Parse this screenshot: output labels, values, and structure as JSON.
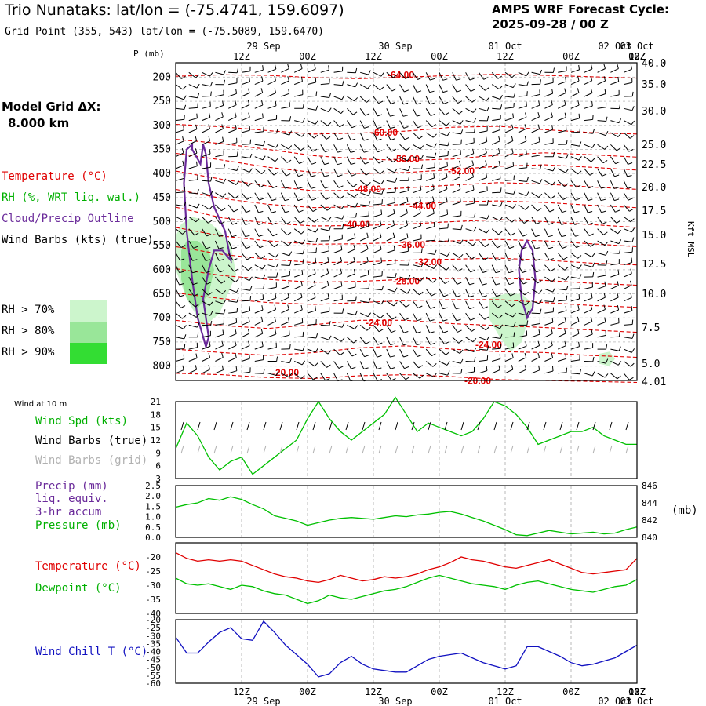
{
  "header": {
    "station_title": "Trio Nunataks:  lat/lon = (-75.4741, 159.6097)",
    "grid_point": "Grid Point (355, 543) lat/lon = (-75.5089, 159.6470)",
    "cycle_title": "AMPS WRF Forecast Cycle:",
    "cycle_value": "2025-09-28 / 00  Z"
  },
  "time_axis": {
    "tick_labels": [
      "12Z",
      "00Z",
      "12Z",
      "00Z",
      "12Z",
      "00Z",
      "12Z",
      "00Z",
      "12Z",
      "00Z"
    ],
    "date_labels": [
      "29 Sep",
      "30 Sep",
      "01 Oct",
      "02 Oct",
      "03 Oct"
    ]
  },
  "profile": {
    "p_label": "P (mb)",
    "kft_label": "Kft MSL",
    "model_grid_label": "Model Grid ΔX:",
    "model_grid_value": "8.000 km",
    "legend": {
      "temperature": "Temperature (°C)",
      "rh": "RH (%, WRT liq. wat.)",
      "cloud": "Cloud/Precip Outline",
      "wind": "Wind Barbs (kts) (true)",
      "rh70": "RH > 70%",
      "rh80": "RH > 80%",
      "rh90": "RH > 90%"
    }
  },
  "wind_panel": {
    "top_label": "Wind at 10 m",
    "legend_speed": "Wind Spd (kts)",
    "legend_true": "Wind Barbs (true)",
    "legend_grid": "Wind Barbs (grid)"
  },
  "precip_panel": {
    "legend_precip_1": "Precip (mm)",
    "legend_precip_2": "liq. equiv.",
    "legend_precip_3": "3-hr accum",
    "legend_pressure": "Pressure (mb)",
    "right_unit": "(mb)"
  },
  "temp_panel": {
    "legend_temp": "Temperature (°C)",
    "legend_dew": "Dewpoint (°C)"
  },
  "chill_panel": {
    "legend": "Wind Chill T (°C)"
  },
  "colors": {
    "temperature": "#e00000",
    "green": "#00c000",
    "cloud": "#6a2a9a",
    "chill": "#1010c0",
    "grid_barb": "#b0b0b0",
    "rh70": "#ccf5cc",
    "rh80": "#99e699",
    "rh90": "#33dd33"
  },
  "chart_data": [
    {
      "id": "cross_section",
      "type": "heatmap",
      "y_axis_left": {
        "label": "P (mb)",
        "ticks": [
          200,
          250,
          300,
          350,
          400,
          450,
          500,
          550,
          600,
          650,
          700,
          750,
          800
        ]
      },
      "y_axis_right": {
        "label": "Kft MSL",
        "ticks": [
          "40.0",
          "35.0",
          "30.0",
          "25.0",
          "22.5",
          "20.0",
          "17.5",
          "15.0",
          "12.5",
          "10.0",
          "7.5",
          "5.0",
          "4.01"
        ]
      },
      "isotherm_labels": [
        {
          "text": "-64.00",
          "hour": 41,
          "p": 195
        },
        {
          "text": "-60.00",
          "hour": 38,
          "p": 315
        },
        {
          "text": "-56.00",
          "hour": 42,
          "p": 370
        },
        {
          "text": "-52.00",
          "hour": 52,
          "p": 395
        },
        {
          "text": "-48.00",
          "hour": 35,
          "p": 432
        },
        {
          "text": "-44.00",
          "hour": 45,
          "p": 467
        },
        {
          "text": "-40.00",
          "hour": 33,
          "p": 506
        },
        {
          "text": "-36.00",
          "hour": 43,
          "p": 548
        },
        {
          "text": "-32.00",
          "hour": 46,
          "p": 584
        },
        {
          "text": "-28.00",
          "hour": 42,
          "p": 624
        },
        {
          "text": "-24.00",
          "hour": 37,
          "p": 710
        },
        {
          "text": "-24.00",
          "hour": 57,
          "p": 756
        },
        {
          "text": "-20.00",
          "hour": 20,
          "p": 814
        },
        {
          "text": "-20.00",
          "hour": 55,
          "p": 831
        }
      ],
      "isotherms": [
        {
          "p": [
            198,
            195,
            196,
            201,
            203,
            200,
            196,
            194,
            196,
            199,
            202
          ]
        },
        {
          "p": [
            298,
            303,
            311,
            318,
            316,
            312,
            304,
            302,
            309,
            315,
            318
          ]
        },
        {
          "p": [
            329,
            338,
            350,
            363,
            370,
            373,
            370,
            362,
            357,
            361,
            366
          ]
        },
        {
          "p": [
            358,
            372,
            387,
            398,
            400,
            398,
            392,
            385,
            382,
            387,
            393
          ]
        },
        {
          "p": [
            395,
            412,
            426,
            436,
            435,
            430,
            424,
            419,
            422,
            428,
            433
          ]
        },
        {
          "p": [
            433,
            452,
            464,
            471,
            469,
            464,
            459,
            457,
            460,
            466,
            471
          ]
        },
        {
          "p": [
            470,
            492,
            503,
            509,
            508,
            505,
            500,
            496,
            500,
            506,
            512
          ]
        },
        {
          "p": [
            512,
            530,
            540,
            547,
            546,
            543,
            540,
            537,
            540,
            546,
            552
          ]
        },
        {
          "p": [
            552,
            568,
            578,
            585,
            584,
            580,
            578,
            576,
            580,
            586,
            590
          ]
        },
        {
          "p": [
            598,
            612,
            620,
            626,
            624,
            620,
            618,
            617,
            622,
            628,
            632
          ]
        },
        {
          "p": [
            648,
            660,
            668,
            672,
            668,
            664,
            662,
            662,
            668,
            674,
            678
          ]
        },
        {
          "p": [
            705,
            716,
            722,
            714,
            705,
            705,
            712,
            716,
            720,
            725,
            730
          ]
        },
        {
          "p": [
            765,
            772,
            778,
            772,
            762,
            758,
            765,
            770,
            772,
            778,
            782
          ]
        },
        {
          "p": [
            815,
            818,
            824,
            826,
            820,
            818,
            822,
            828,
            830,
            832,
            834
          ]
        }
      ],
      "moist_regions": [
        {
          "level": "rh70",
          "hours": [
            0,
            1,
            3,
            6,
            8,
            10,
            11,
            8,
            5,
            2,
            0
          ],
          "p": [
            530,
            505,
            490,
            500,
            520,
            545,
            610,
            690,
            720,
            660,
            600
          ]
        },
        {
          "level": "rh80",
          "hours": [
            1,
            2,
            4,
            6,
            7,
            6,
            4,
            2,
            1
          ],
          "p": [
            560,
            540,
            540,
            560,
            600,
            650,
            680,
            660,
            620
          ]
        },
        {
          "level": "rh70",
          "hours": [
            57,
            60,
            63,
            65,
            64,
            63,
            61,
            59,
            57
          ],
          "p": [
            660,
            650,
            650,
            670,
            710,
            750,
            770,
            740,
            700
          ]
        },
        {
          "level": "rh70",
          "hours": [
            77,
            79,
            80,
            79,
            77
          ],
          "p": [
            775,
            770,
            785,
            800,
            795
          ]
        }
      ],
      "cloud_outlines": [
        {
          "hours": [
            3,
            2,
            1.5,
            2,
            3,
            4,
            5.5,
            6,
            5,
            6,
            7,
            8.5,
            10,
            9,
            7,
            6,
            5.5,
            5,
            4.5,
            3
          ],
          "p": [
            340,
            350,
            420,
            520,
            620,
            700,
            760,
            740,
            660,
            600,
            560,
            560,
            580,
            520,
            470,
            420,
            360,
            340,
            380,
            350
          ]
        },
        {
          "hours": [
            63,
            62.5,
            63,
            64,
            65,
            65.5,
            65,
            64
          ],
          "p": [
            560,
            600,
            660,
            700,
            680,
            620,
            560,
            540
          ]
        }
      ]
    },
    {
      "id": "wind_10m",
      "type": "line",
      "x_hours": [
        0,
        2,
        4,
        6,
        8,
        10,
        12,
        14,
        16,
        18,
        20,
        22,
        24,
        26,
        28,
        30,
        32,
        34,
        36,
        38,
        40,
        42,
        44,
        46,
        48,
        50,
        52,
        54,
        56,
        58,
        60,
        62,
        64,
        66,
        68,
        70,
        72,
        74,
        76,
        78,
        80,
        82,
        84
      ],
      "series": [
        {
          "name": "Wind Spd (kts)",
          "values": [
            10,
            16,
            13,
            8,
            5,
            7,
            8,
            4,
            6,
            8,
            10,
            12,
            17,
            21,
            17,
            14,
            12,
            14,
            16,
            18,
            22,
            18,
            14,
            16,
            15,
            14,
            13,
            14,
            17,
            21,
            20,
            18,
            15,
            11,
            12,
            13,
            14,
            14,
            15,
            13,
            12,
            11,
            11
          ]
        }
      ],
      "ylim": [
        3,
        21
      ],
      "yticks": [
        3,
        6,
        9,
        12,
        15,
        18,
        21
      ]
    },
    {
      "id": "precip_pressure",
      "type": "line",
      "x_hours": [
        0,
        2,
        4,
        6,
        8,
        10,
        12,
        14,
        16,
        18,
        20,
        22,
        24,
        26,
        28,
        30,
        32,
        34,
        36,
        38,
        40,
        42,
        44,
        46,
        48,
        50,
        52,
        54,
        56,
        58,
        60,
        62,
        64,
        66,
        68,
        70,
        72,
        74,
        76,
        78,
        80,
        82,
        84
      ],
      "series": [
        {
          "name": "Pressure (mb)",
          "values": [
            843.5,
            843.8,
            844.0,
            844.5,
            844.3,
            844.7,
            844.4,
            843.8,
            843.3,
            842.5,
            842.2,
            841.9,
            841.4,
            841.7,
            842.0,
            842.2,
            842.3,
            842.2,
            842.1,
            842.3,
            842.5,
            842.4,
            842.6,
            842.7,
            842.9,
            843.0,
            842.7,
            842.3,
            841.9,
            841.4,
            840.9,
            840.3,
            840.2,
            840.5,
            840.8,
            840.6,
            840.4,
            840.5,
            840.6,
            840.4,
            840.5,
            840.9,
            841.2
          ]
        }
      ],
      "left_ylim": [
        0,
        2.5
      ],
      "left_yticks": [
        0.0,
        0.5,
        1.0,
        1.5,
        2.0,
        2.5
      ],
      "right_ylim": [
        840,
        846
      ],
      "right_yticks": [
        840,
        842,
        844,
        846
      ]
    },
    {
      "id": "temp_dew",
      "type": "line",
      "x_hours": [
        0,
        2,
        4,
        6,
        8,
        10,
        12,
        14,
        16,
        18,
        20,
        22,
        24,
        26,
        28,
        30,
        32,
        34,
        36,
        38,
        40,
        42,
        44,
        46,
        48,
        50,
        52,
        54,
        56,
        58,
        60,
        62,
        64,
        66,
        68,
        70,
        72,
        74,
        76,
        78,
        80,
        82,
        84
      ],
      "series": [
        {
          "name": "Temperature (°C)",
          "values": [
            -18.5,
            -20.5,
            -21.5,
            -21.0,
            -21.5,
            -21.0,
            -21.5,
            -23.0,
            -24.5,
            -26.0,
            -27.0,
            -27.5,
            -28.5,
            -29.0,
            -28.0,
            -26.5,
            -27.5,
            -28.5,
            -28.0,
            -27.0,
            -27.5,
            -27.0,
            -26.0,
            -24.5,
            -23.5,
            -22.0,
            -20.0,
            -21.0,
            -21.5,
            -22.5,
            -23.5,
            -24.0,
            -23.0,
            -22.0,
            -21.0,
            -22.5,
            -24.0,
            -25.5,
            -26.0,
            -25.5,
            -25.0,
            -24.5,
            -20.5
          ]
        },
        {
          "name": "Dewpoint (°C)",
          "values": [
            -27.5,
            -29.5,
            -30.0,
            -29.5,
            -30.5,
            -31.5,
            -30.0,
            -30.5,
            -32.0,
            -33.0,
            -33.5,
            -35.0,
            -36.5,
            -35.5,
            -33.5,
            -34.5,
            -35.0,
            -34.0,
            -33.0,
            -32.0,
            -31.5,
            -30.5,
            -29.0,
            -27.5,
            -26.5,
            -27.5,
            -28.5,
            -29.5,
            -30.0,
            -30.5,
            -31.5,
            -30.0,
            -29.0,
            -28.5,
            -29.5,
            -30.5,
            -31.5,
            -32.0,
            -32.5,
            -31.5,
            -30.5,
            -30.0,
            -28.0
          ]
        }
      ],
      "ylim": [
        -40,
        -15
      ],
      "yticks": [
        -20,
        -25,
        -30,
        -35,
        -40
      ]
    },
    {
      "id": "wind_chill",
      "type": "line",
      "x_hours": [
        0,
        2,
        4,
        6,
        8,
        10,
        12,
        14,
        16,
        18,
        20,
        22,
        24,
        26,
        28,
        30,
        32,
        34,
        36,
        38,
        40,
        42,
        44,
        46,
        48,
        50,
        52,
        54,
        56,
        58,
        60,
        62,
        64,
        66,
        68,
        70,
        72,
        74,
        76,
        78,
        80,
        82,
        84
      ],
      "series": [
        {
          "name": "Wind Chill T (°C)",
          "values": [
            -31,
            -41,
            -41,
            -34,
            -28,
            -25,
            -32,
            -33,
            -21,
            -28,
            -36,
            -42,
            -48,
            -56,
            -54,
            -47,
            -43,
            -48,
            -51,
            -52,
            -53,
            -53,
            -49,
            -45,
            -43,
            -42,
            -41,
            -44,
            -47,
            -49,
            -51,
            -49,
            -37,
            -37,
            -40,
            -43,
            -47,
            -49,
            -48,
            -46,
            -44,
            -40,
            -36
          ]
        }
      ],
      "ylim": [
        -60,
        -20
      ],
      "yticks": [
        -20,
        -25,
        -30,
        -35,
        -40,
        -45,
        -50,
        -55,
        -60
      ]
    }
  ]
}
